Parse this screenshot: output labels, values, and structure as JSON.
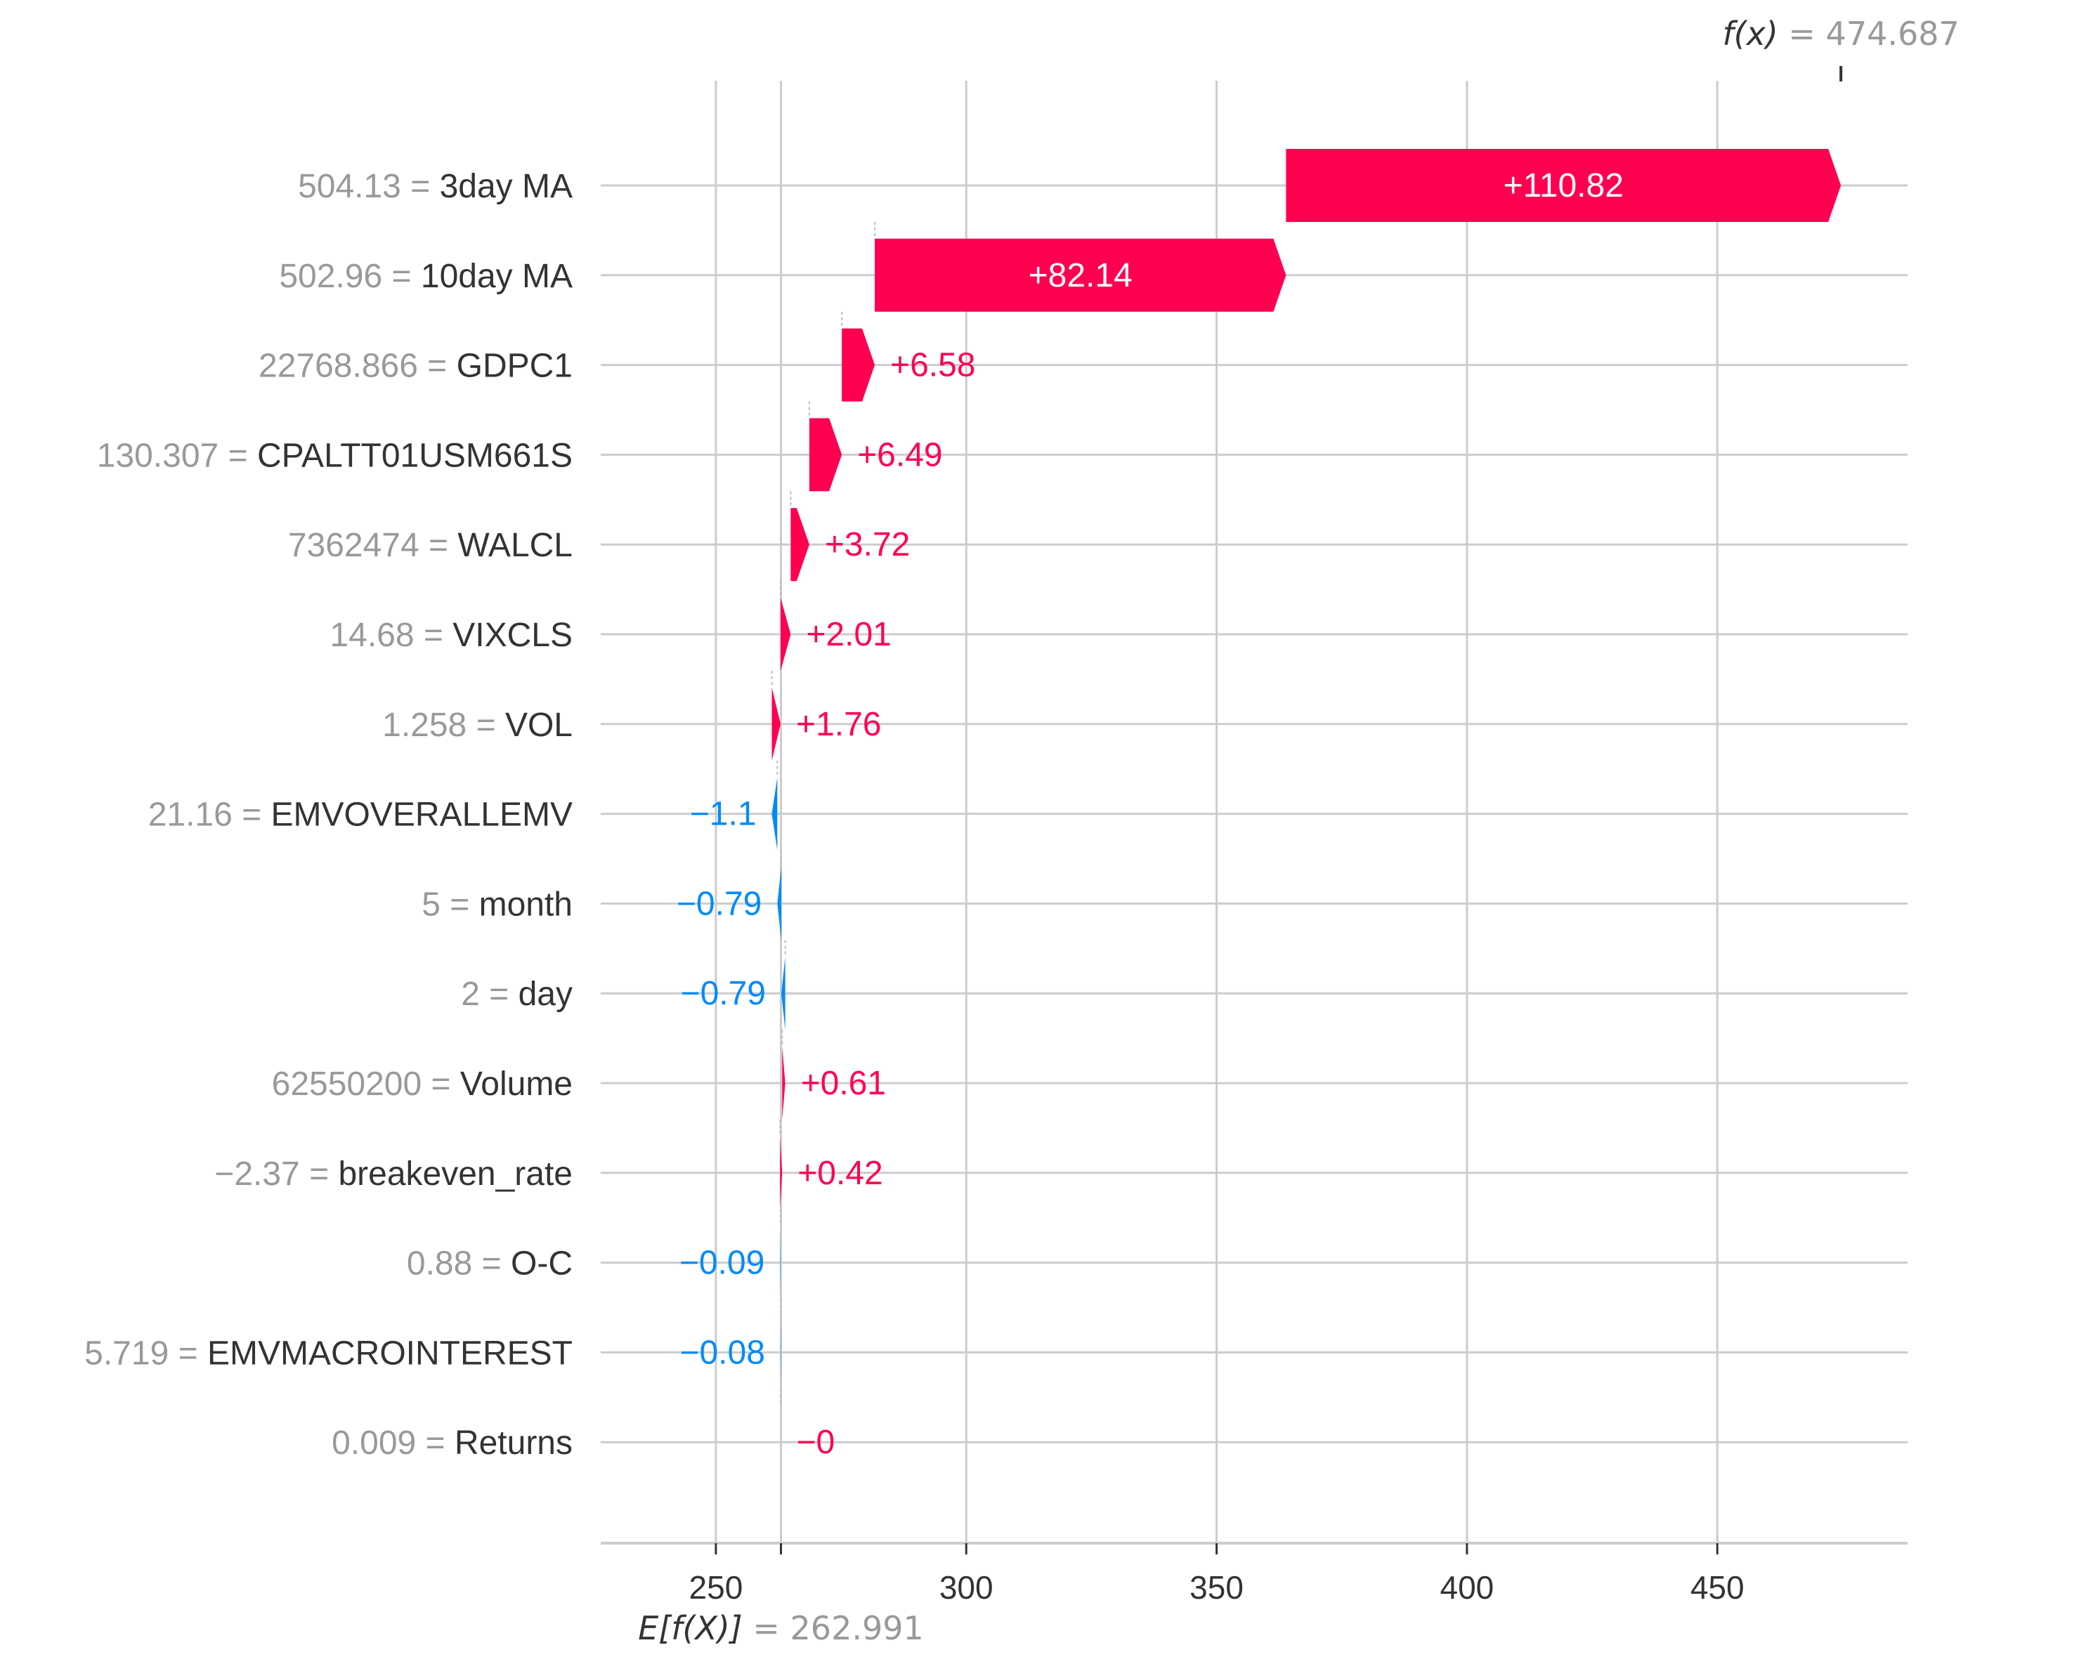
{
  "chart_data": {
    "type": "waterfall",
    "title": "",
    "xlabel": "",
    "ylabel": "",
    "xlim": [
      227,
      488
    ],
    "xticks": [
      250,
      300,
      350,
      400,
      450
    ],
    "grid": true,
    "base_value": 262.991,
    "base_label_prefix": "E[f(X)]",
    "base_label_value": "= 262.991",
    "output_value": 474.687,
    "output_label_prefix": "f(x)",
    "output_label_value": "= 474.687",
    "colors": {
      "positive": "#ff0051",
      "negative": "#008bfb",
      "feature_value": "#999999",
      "feature_name": "#333333",
      "grid": "#cccccc"
    },
    "features": [
      {
        "name": "3day MA",
        "value": "504.13",
        "contribution": 110.82,
        "label": "+110.82"
      },
      {
        "name": "10day MA",
        "value": "502.96",
        "contribution": 82.14,
        "label": "+82.14"
      },
      {
        "name": "GDPC1",
        "value": "22768.866",
        "contribution": 6.58,
        "label": "+6.58"
      },
      {
        "name": "CPALTT01USM661S",
        "value": "130.307",
        "contribution": 6.49,
        "label": "+6.49"
      },
      {
        "name": "WALCL",
        "value": "7362474",
        "contribution": 3.72,
        "label": "+3.72"
      },
      {
        "name": "VIXCLS",
        "value": "14.68",
        "contribution": 2.01,
        "label": "+2.01"
      },
      {
        "name": "VOL",
        "value": "1.258",
        "contribution": 1.76,
        "label": "+1.76"
      },
      {
        "name": "EMVOVERALLEMV",
        "value": "21.16",
        "contribution": -1.1,
        "label": "−1.1"
      },
      {
        "name": "month",
        "value": "5",
        "contribution": -0.79,
        "label": "−0.79"
      },
      {
        "name": "day",
        "value": "2",
        "contribution": -0.79,
        "label": "−0.79"
      },
      {
        "name": "Volume",
        "value": "62550200",
        "contribution": 0.61,
        "label": "+0.61"
      },
      {
        "name": "breakeven_rate",
        "value": "−2.37",
        "contribution": 0.42,
        "label": "+0.42"
      },
      {
        "name": "O-C",
        "value": "0.88",
        "contribution": -0.09,
        "label": "−0.09"
      },
      {
        "name": "EMVMACROINTEREST",
        "value": "5.719",
        "contribution": -0.08,
        "label": "−0.08"
      },
      {
        "name": "Returns",
        "value": "0.009",
        "contribution": 0.0,
        "label": "−0"
      }
    ]
  }
}
